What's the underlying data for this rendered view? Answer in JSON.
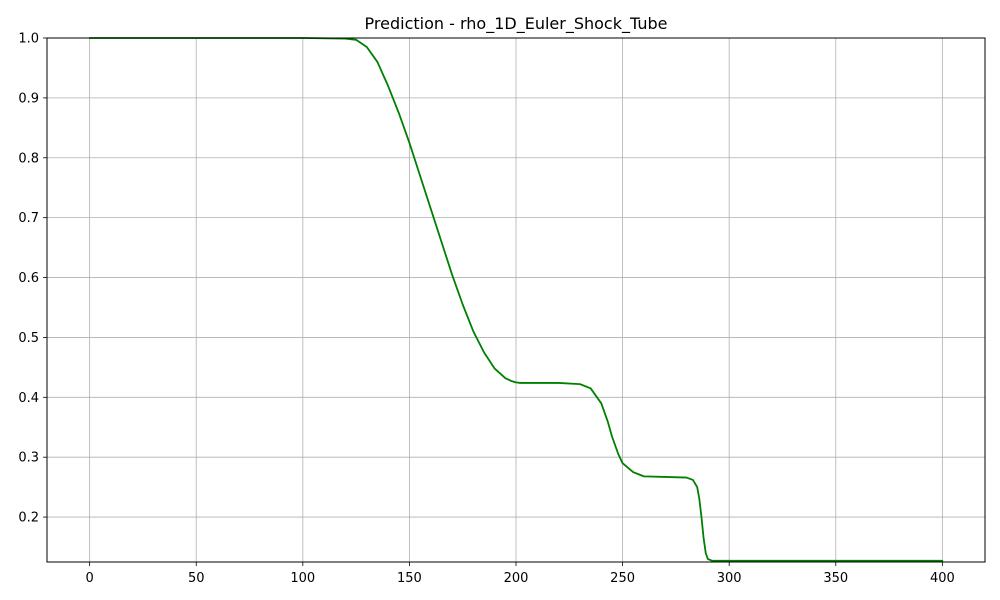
{
  "chart_data": {
    "type": "line",
    "title": "Prediction - rho_1D_Euler_Shock_Tube",
    "xlabel": "",
    "ylabel": "",
    "xlim": [
      -20,
      420
    ],
    "ylim": [
      0.125,
      1.0
    ],
    "xticks": [
      0,
      50,
      100,
      150,
      200,
      250,
      300,
      350,
      400
    ],
    "yticks": [
      0.2,
      0.3,
      0.4,
      0.5,
      0.6,
      0.7,
      0.8,
      0.9,
      1.0
    ],
    "xtick_labels": [
      "0",
      "50",
      "100",
      "150",
      "200",
      "250",
      "300",
      "350",
      "400"
    ],
    "ytick_labels": [
      "0.2",
      "0.3",
      "0.4",
      "0.5",
      "0.6",
      "0.7",
      "0.8",
      "0.9",
      "1.0"
    ],
    "grid": true,
    "series": [
      {
        "color": "#008000",
        "x": [
          0,
          50,
          100,
          120,
          125,
          130,
          135,
          140,
          145,
          150,
          155,
          160,
          165,
          170,
          175,
          180,
          185,
          190,
          195,
          198,
          200,
          202,
          205,
          210,
          220,
          230,
          235,
          240,
          243,
          245,
          248,
          250,
          255,
          260,
          270,
          280,
          283,
          285,
          286,
          287,
          288,
          289,
          290,
          292,
          295,
          300,
          350,
          400
        ],
        "y": [
          1.0,
          1.0,
          1.0,
          0.999,
          0.997,
          0.985,
          0.96,
          0.92,
          0.875,
          0.825,
          0.77,
          0.715,
          0.66,
          0.605,
          0.555,
          0.51,
          0.475,
          0.448,
          0.432,
          0.427,
          0.425,
          0.424,
          0.424,
          0.424,
          0.424,
          0.422,
          0.415,
          0.39,
          0.36,
          0.335,
          0.305,
          0.29,
          0.275,
          0.268,
          0.267,
          0.266,
          0.262,
          0.25,
          0.23,
          0.2,
          0.165,
          0.14,
          0.13,
          0.127,
          0.127,
          0.127,
          0.127,
          0.127
        ]
      }
    ]
  }
}
